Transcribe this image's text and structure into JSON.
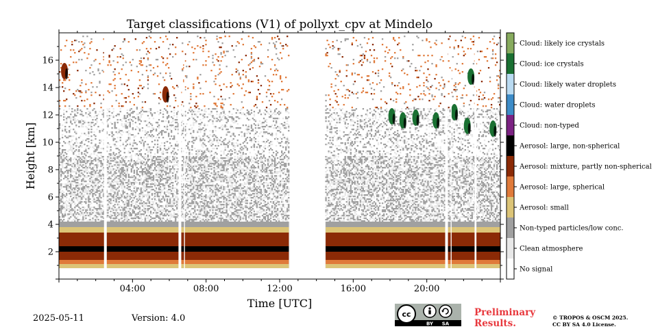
{
  "chart_data": {
    "type": "heatmap",
    "title": "Target classifications (V1) of pollyxt_cpv at Mindelo",
    "xlabel": "Time [UTC]",
    "ylabel": "Height [km]",
    "xlim": [
      0,
      24
    ],
    "ylim": [
      0,
      18
    ],
    "x_ticks": [
      {
        "v": 4,
        "label": "04:00"
      },
      {
        "v": 8,
        "label": "08:00"
      },
      {
        "v": 12,
        "label": "12:00"
      },
      {
        "v": 16,
        "label": "16:00"
      },
      {
        "v": 20,
        "label": "20:00"
      }
    ],
    "y_ticks": [
      {
        "v": 2,
        "label": "2"
      },
      {
        "v": 4,
        "label": "4"
      },
      {
        "v": 6,
        "label": "6"
      },
      {
        "v": 8,
        "label": "8"
      },
      {
        "v": 10,
        "label": "10"
      },
      {
        "v": 12,
        "label": "12"
      },
      {
        "v": 14,
        "label": "14"
      },
      {
        "v": 16,
        "label": "16"
      }
    ],
    "classes": [
      {
        "id": 0,
        "label": "No signal",
        "color": "#ffffff"
      },
      {
        "id": 1,
        "label": "Clean atmosphere",
        "color": "#e8e8e8"
      },
      {
        "id": 2,
        "label": "Non-typed particles/low conc.",
        "color": "#a0a0a0"
      },
      {
        "id": 3,
        "label": "Aerosol: small",
        "color": "#dcc477"
      },
      {
        "id": 4,
        "label": "Aerosol: large, spherical",
        "color": "#e07a3a"
      },
      {
        "id": 5,
        "label": "Aerosol: mixture, partly non-spherical",
        "color": "#8b2a06"
      },
      {
        "id": 6,
        "label": "Aerosol: large, non-spherical",
        "color": "#000000"
      },
      {
        "id": 7,
        "label": "Cloud: non-typed",
        "color": "#7b2282"
      },
      {
        "id": 8,
        "label": "Cloud: water droplets",
        "color": "#3d8cc8"
      },
      {
        "id": 9,
        "label": "Cloud: likely water droplets",
        "color": "#b9daf1"
      },
      {
        "id": 10,
        "label": "Cloud: ice crystals",
        "color": "#1a7032"
      },
      {
        "id": 11,
        "label": "Cloud: likely ice crystals",
        "color": "#87ab5e"
      }
    ],
    "measurement_periods": [
      [
        0,
        12.5
      ],
      [
        14.5,
        24
      ]
    ],
    "gaps": [
      [
        2.45,
        2.6
      ],
      [
        6.5,
        6.65
      ],
      [
        6.8,
        6.85
      ],
      [
        21.0,
        21.15
      ],
      [
        21.3,
        21.35
      ],
      [
        22.6,
        22.7
      ]
    ],
    "layers": [
      {
        "class": 2,
        "h_bottom": 3.8,
        "h_top": 4.2
      },
      {
        "class": 3,
        "h_bottom": 3.4,
        "h_top": 3.8
      },
      {
        "class": 5,
        "h_bottom": 2.4,
        "h_top": 3.4
      },
      {
        "class": 6,
        "h_bottom": 2.0,
        "h_top": 2.4
      },
      {
        "class": 5,
        "h_bottom": 1.4,
        "h_top": 2.0
      },
      {
        "class": 4,
        "h_bottom": 1.1,
        "h_top": 1.4
      },
      {
        "class": 3,
        "h_bottom": 0.8,
        "h_top": 1.1
      }
    ],
    "clouds": [
      {
        "class": 10,
        "t": 18.1,
        "h": 11.9
      },
      {
        "class": 10,
        "t": 18.7,
        "h": 11.6
      },
      {
        "class": 10,
        "t": 19.4,
        "h": 11.8
      },
      {
        "class": 10,
        "t": 20.5,
        "h": 11.6
      },
      {
        "class": 10,
        "t": 21.5,
        "h": 12.2
      },
      {
        "class": 10,
        "t": 22.2,
        "h": 11.2
      },
      {
        "class": 10,
        "t": 23.6,
        "h": 11.0
      },
      {
        "class": 10,
        "t": 22.4,
        "h": 14.8
      },
      {
        "class": 5,
        "t": 0.3,
        "h": 15.2
      },
      {
        "class": 5,
        "t": 5.8,
        "h": 13.5
      }
    ]
  },
  "footer": {
    "date": "2025-05-11",
    "version": "Version: 4.0",
    "preliminary_line1": "Preliminary",
    "preliminary_line2": "Results.",
    "license_line1": "© TROPOS & OSCM 2025.",
    "license_line2": "CC BY SA 4.0 License."
  },
  "cc_badge": {
    "cc": "cc",
    "by": "BY",
    "sa": "SA"
  }
}
